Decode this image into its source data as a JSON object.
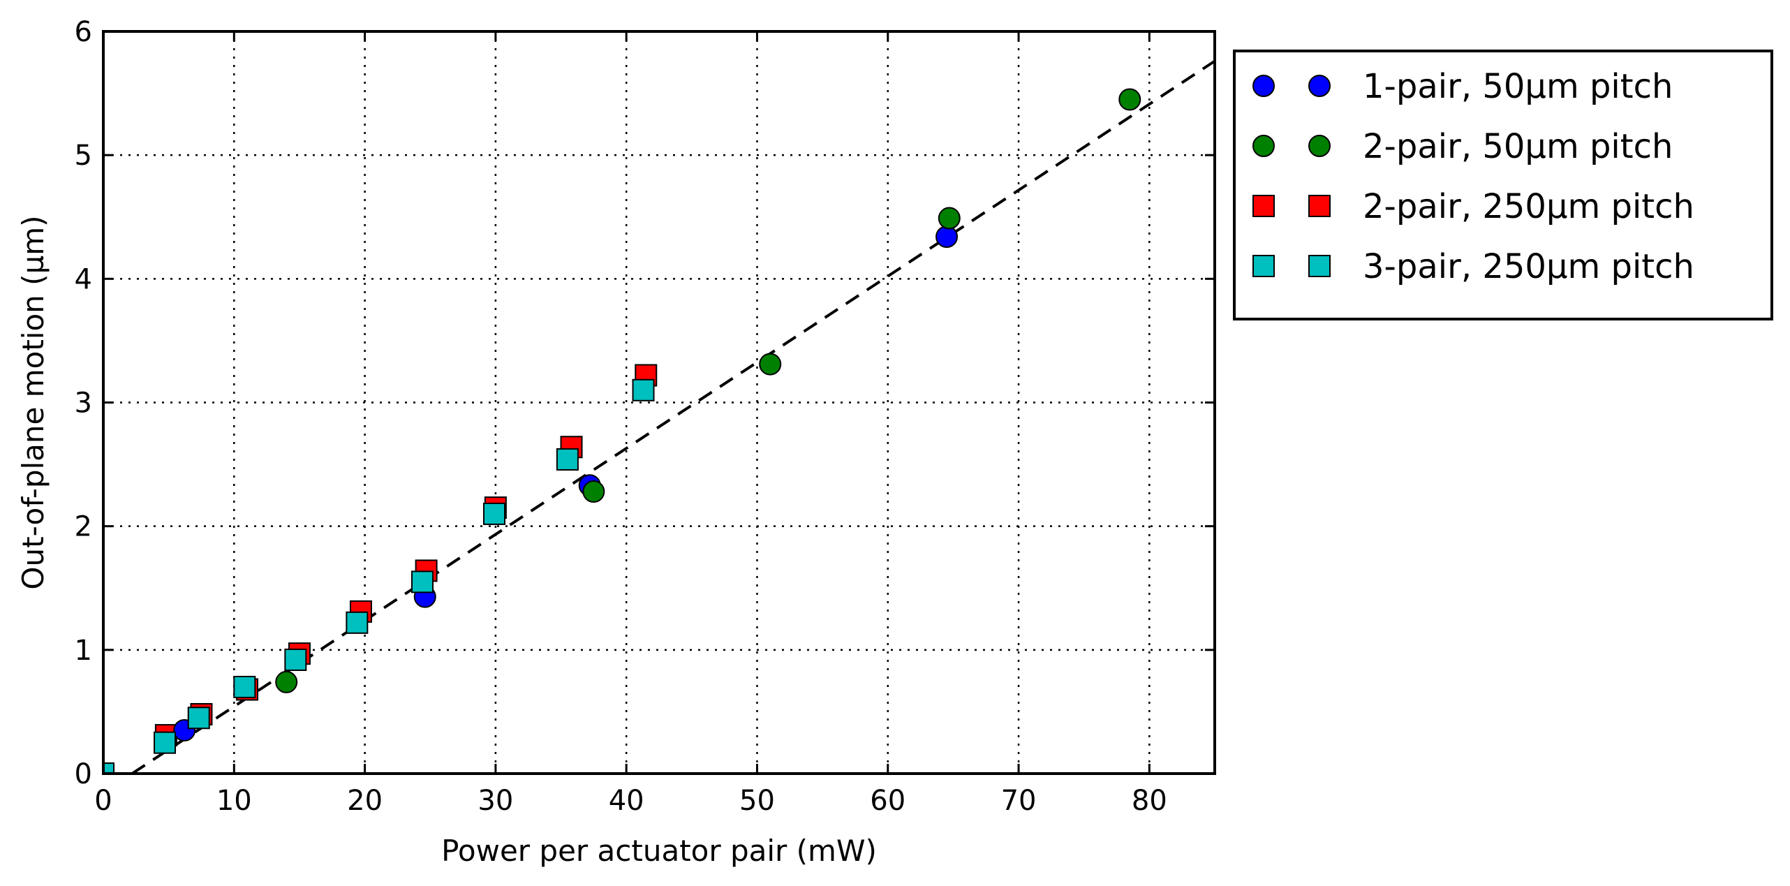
{
  "chart_data": {
    "type": "scatter",
    "title": "",
    "xlabel": "Power per actuator pair (mW)",
    "ylabel": "Out-of-plane motion (µm)",
    "xlim": [
      0,
      85
    ],
    "ylim": [
      0,
      6
    ],
    "xticks": [
      "0",
      "10",
      "20",
      "30",
      "40",
      "50",
      "60",
      "70",
      "80"
    ],
    "yticks": [
      "0",
      "1",
      "2",
      "3",
      "4",
      "5",
      "6"
    ],
    "grid": true,
    "legend_position": "outside-right-top",
    "series": [
      {
        "name": "1-pair, 50µm pitch",
        "marker": "circle",
        "color": "#0000ff",
        "points": [
          [
            6.2,
            0.35
          ],
          [
            24.6,
            1.43
          ],
          [
            37.2,
            2.33
          ],
          [
            64.5,
            4.34
          ]
        ]
      },
      {
        "name": "2-pair, 50µm pitch",
        "marker": "circle",
        "color": "#008000",
        "points": [
          [
            14.0,
            0.74
          ],
          [
            37.5,
            2.28
          ],
          [
            51.0,
            3.31
          ],
          [
            64.7,
            4.49
          ],
          [
            78.5,
            5.45
          ]
        ]
      },
      {
        "name": "2-pair, 250µm pitch",
        "marker": "square",
        "color": "#ff0000",
        "points": [
          [
            4.8,
            0.31
          ],
          [
            7.5,
            0.48
          ],
          [
            11.0,
            0.68
          ],
          [
            15.0,
            0.97
          ],
          [
            19.7,
            1.31
          ],
          [
            24.7,
            1.64
          ],
          [
            30.0,
            2.15
          ],
          [
            35.8,
            2.64
          ],
          [
            41.5,
            3.22
          ]
        ]
      },
      {
        "name": "3-pair, 250µm pitch",
        "marker": "square",
        "color": "#00bfbf",
        "points": [
          [
            0.0,
            0.0
          ],
          [
            4.7,
            0.25
          ],
          [
            7.3,
            0.45
          ],
          [
            10.8,
            0.7
          ],
          [
            14.7,
            0.92
          ],
          [
            19.4,
            1.22
          ],
          [
            24.4,
            1.55
          ],
          [
            29.9,
            2.1
          ],
          [
            35.5,
            2.54
          ],
          [
            41.3,
            3.1
          ]
        ]
      }
    ],
    "fit_line": {
      "style": "dashed",
      "color": "#000000",
      "x": [
        2.2,
        85
      ],
      "y": [
        0,
        5.76
      ]
    }
  }
}
